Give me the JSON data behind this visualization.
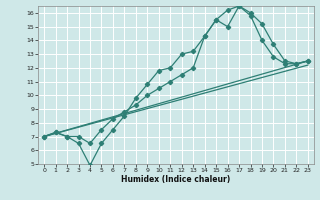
{
  "xlabel": "Humidex (Indice chaleur)",
  "xlim": [
    -0.5,
    23.5
  ],
  "ylim": [
    5,
    16.5
  ],
  "xticks": [
    0,
    1,
    2,
    3,
    4,
    5,
    6,
    7,
    8,
    9,
    10,
    11,
    12,
    13,
    14,
    15,
    16,
    17,
    18,
    19,
    20,
    21,
    22,
    23
  ],
  "yticks": [
    5,
    6,
    7,
    8,
    9,
    10,
    11,
    12,
    13,
    14,
    15,
    16
  ],
  "bg_color": "#cfe8e8",
  "grid_color": "#ffffff",
  "line_color": "#2e7f75",
  "line1_x": [
    0,
    1,
    2,
    3,
    4,
    5,
    6,
    7,
    8,
    9,
    10,
    11,
    12,
    13,
    14,
    15,
    16,
    17,
    18,
    19,
    20,
    21,
    22,
    23
  ],
  "line1_y": [
    7.0,
    7.3,
    7.0,
    7.0,
    6.5,
    7.5,
    8.3,
    8.8,
    9.3,
    10.0,
    10.5,
    11.0,
    11.5,
    12.0,
    14.3,
    15.5,
    16.2,
    16.5,
    15.8,
    14.0,
    12.8,
    12.3,
    12.3,
    12.5
  ],
  "line2_x": [
    0,
    1,
    2,
    3,
    4,
    5,
    6,
    7,
    8,
    9,
    10,
    11,
    12,
    13,
    14,
    15,
    16,
    17,
    18,
    19,
    20,
    21,
    22,
    23
  ],
  "line2_y": [
    7.0,
    7.3,
    7.0,
    6.5,
    4.9,
    6.5,
    7.5,
    8.5,
    9.8,
    10.8,
    11.8,
    12.0,
    13.0,
    13.2,
    14.3,
    15.5,
    15.0,
    16.5,
    16.0,
    15.2,
    13.7,
    12.5,
    12.3,
    12.5
  ],
  "line3_y_start": 7.0,
  "line3_y_end": 12.5,
  "line4_y_start": 7.0,
  "line4_y_end": 12.2
}
